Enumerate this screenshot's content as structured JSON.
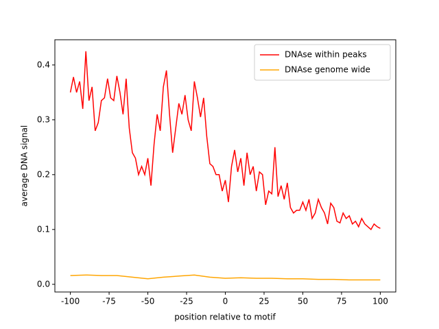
{
  "chart_data": {
    "type": "line",
    "xlabel": "position relative to motif",
    "ylabel": "average DNA signal",
    "xlim": [
      -110,
      110
    ],
    "ylim": [
      -0.014,
      0.446
    ],
    "xticks": [
      -100,
      -75,
      -50,
      -25,
      0,
      25,
      50,
      75,
      100
    ],
    "yticks": [
      {
        "value": 0,
        "label": "0.0"
      },
      0.1,
      0.2,
      0.3,
      0.4
    ],
    "legend": "upper right",
    "grid": false,
    "series": [
      {
        "name": "DNAse within peaks",
        "color": "#ff0000",
        "x": [
          -100,
          -98,
          -96,
          -94,
          -92,
          -90,
          -88,
          -86,
          -84,
          -82,
          -80,
          -78,
          -76,
          -74,
          -72,
          -70,
          -68,
          -66,
          -64,
          -62,
          -60,
          -58,
          -56,
          -54,
          -52,
          -50,
          -48,
          -46,
          -44,
          -42,
          -40,
          -38,
          -36,
          -34,
          -32,
          -30,
          -28,
          -26,
          -24,
          -22,
          -20,
          -18,
          -16,
          -14,
          -12,
          -10,
          -8,
          -6,
          -4,
          -2,
          0,
          2,
          4,
          6,
          8,
          10,
          12,
          14,
          16,
          18,
          20,
          22,
          24,
          26,
          28,
          30,
          32,
          34,
          36,
          38,
          40,
          42,
          44,
          46,
          48,
          50,
          52,
          54,
          56,
          58,
          60,
          62,
          64,
          66,
          68,
          70,
          72,
          74,
          76,
          78,
          80,
          82,
          84,
          86,
          88,
          90,
          92,
          94,
          96,
          98,
          100
        ],
        "values": [
          0.35,
          0.378,
          0.35,
          0.37,
          0.32,
          0.425,
          0.335,
          0.36,
          0.28,
          0.295,
          0.335,
          0.34,
          0.375,
          0.34,
          0.335,
          0.38,
          0.35,
          0.31,
          0.375,
          0.285,
          0.24,
          0.23,
          0.2,
          0.215,
          0.2,
          0.23,
          0.18,
          0.255,
          0.31,
          0.28,
          0.36,
          0.39,
          0.31,
          0.24,
          0.285,
          0.33,
          0.31,
          0.345,
          0.3,
          0.28,
          0.37,
          0.34,
          0.305,
          0.34,
          0.27,
          0.22,
          0.215,
          0.2,
          0.2,
          0.17,
          0.19,
          0.15,
          0.215,
          0.245,
          0.205,
          0.23,
          0.18,
          0.24,
          0.2,
          0.215,
          0.17,
          0.205,
          0.2,
          0.145,
          0.17,
          0.165,
          0.25,
          0.16,
          0.18,
          0.155,
          0.185,
          0.14,
          0.13,
          0.135,
          0.135,
          0.15,
          0.135,
          0.155,
          0.12,
          0.13,
          0.155,
          0.14,
          0.13,
          0.11,
          0.148,
          0.14,
          0.115,
          0.112,
          0.13,
          0.12,
          0.125,
          0.11,
          0.115,
          0.105,
          0.12,
          0.11,
          0.105,
          0.1,
          0.11,
          0.105,
          0.102
        ]
      },
      {
        "name": "DNAse genome wide",
        "color": "#ffa500",
        "x": [
          -100,
          -90,
          -80,
          -70,
          -60,
          -50,
          -40,
          -30,
          -20,
          -10,
          0,
          10,
          20,
          30,
          40,
          50,
          60,
          70,
          80,
          90,
          100
        ],
        "values": [
          0.016,
          0.017,
          0.016,
          0.016,
          0.013,
          0.01,
          0.013,
          0.015,
          0.017,
          0.013,
          0.011,
          0.012,
          0.011,
          0.011,
          0.01,
          0.01,
          0.009,
          0.009,
          0.008,
          0.008,
          0.008
        ]
      }
    ]
  }
}
